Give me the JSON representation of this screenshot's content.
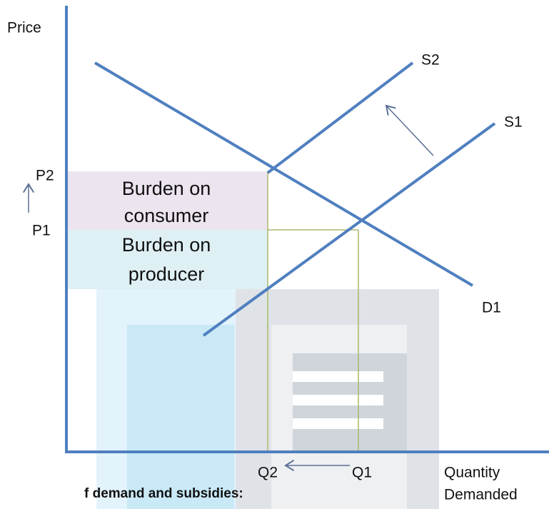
{
  "axis": {
    "y_label": "Price",
    "x_label": [
      "Quantity",
      "Demanded"
    ]
  },
  "curves": {
    "s2": "S2",
    "s1": "S1",
    "d1": "D1"
  },
  "prices": [
    "P2",
    "P1"
  ],
  "quantities": [
    "Q2",
    "Q1"
  ],
  "regions": [
    {
      "label": [
        "Burden on",
        "consumer"
      ]
    },
    {
      "label": [
        "Burden on",
        "producer"
      ]
    }
  ],
  "caption": "f demand and subsidies:"
}
